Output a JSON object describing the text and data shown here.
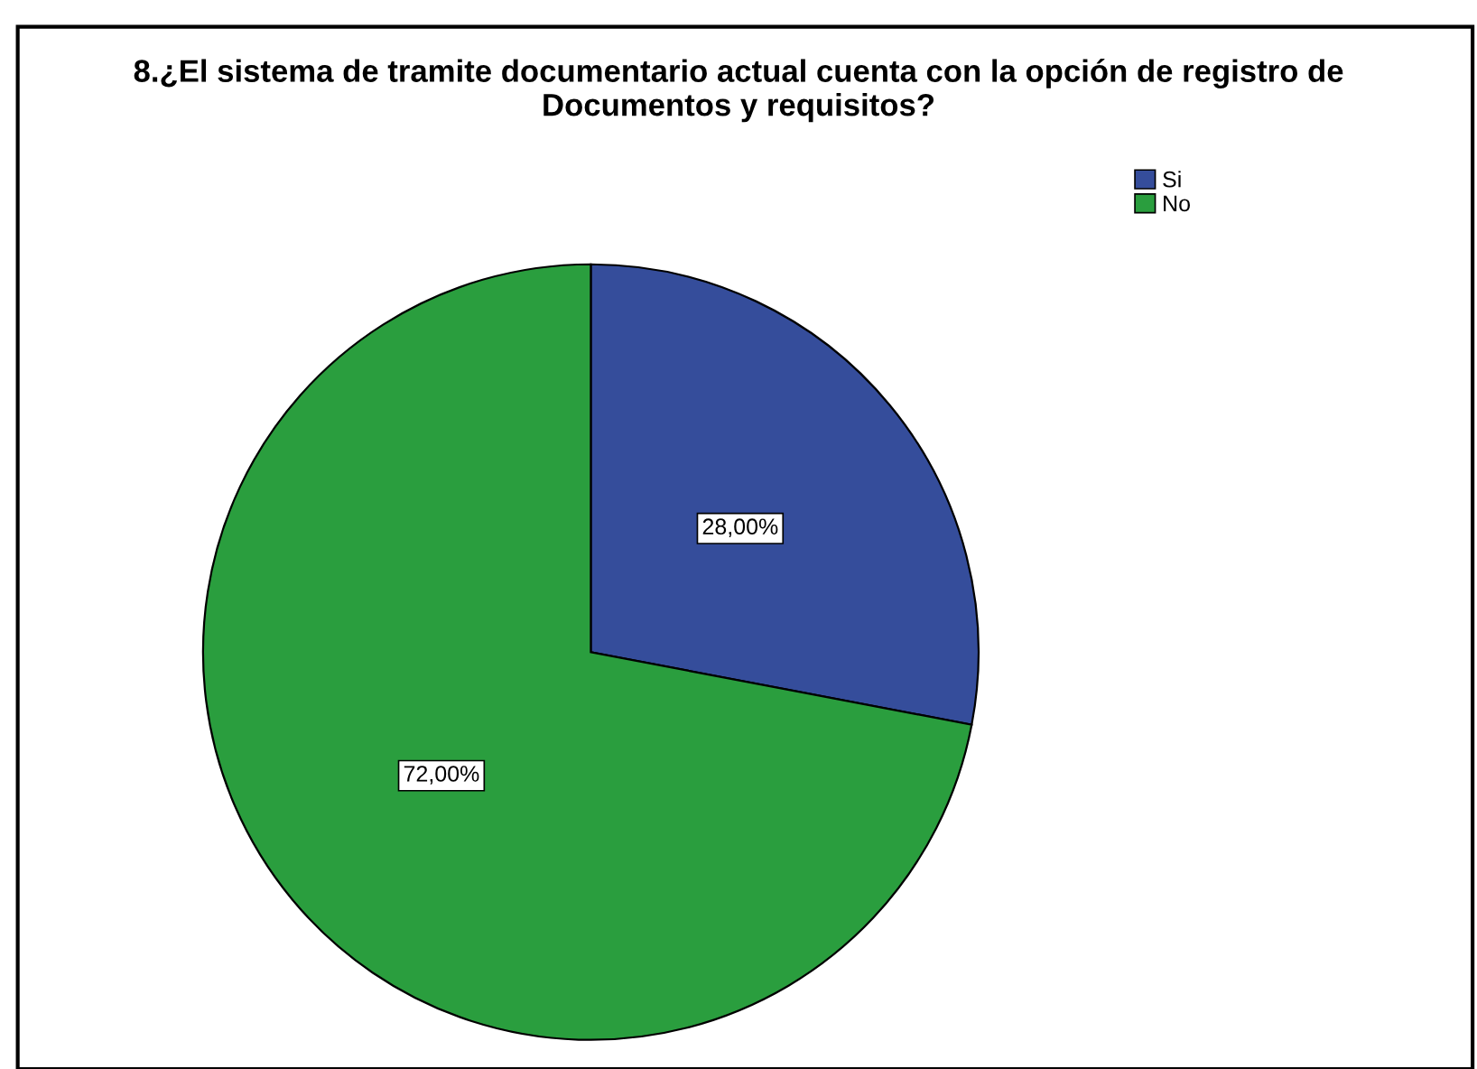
{
  "chart_data": {
    "type": "pie",
    "title": "8.¿El sistema de tramite documentario actual cuenta con la opción de registro de\nDocumentos y requisitos?",
    "categories": [
      "Si",
      "No"
    ],
    "values": [
      28,
      72
    ],
    "colors": [
      "#354d9b",
      "#2a9e3e"
    ],
    "value_labels": [
      "28,00%",
      "72,00%"
    ],
    "legend": "top right"
  }
}
